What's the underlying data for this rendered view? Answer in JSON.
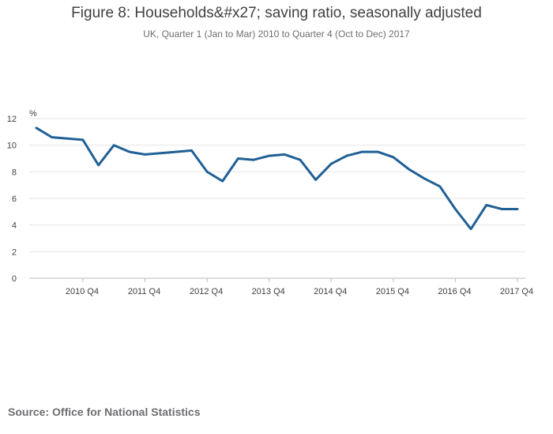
{
  "chart_data": {
    "type": "line",
    "title": "Figure 8: Households&#x27; saving ratio, seasonally adjusted",
    "subtitle": "UK, Quarter 1 (Jan to Mar) 2010 to Quarter 4 (Oct to Dec) 2017",
    "ylabel": "%",
    "xlabel": "",
    "ylim": [
      0,
      12
    ],
    "yticks": [
      0,
      2,
      4,
      6,
      8,
      10,
      12
    ],
    "grid": true,
    "x_labels": [
      "2010 Q4",
      "2011 Q4",
      "2012 Q4",
      "2013 Q4",
      "2014 Q4",
      "2015 Q4",
      "2016 Q4",
      "2017 Q4"
    ],
    "x_label_indices": [
      3,
      7,
      11,
      15,
      19,
      23,
      27,
      31
    ],
    "series": [
      {
        "name": "Households' saving ratio",
        "color": "#206095",
        "values": [
          11.3,
          10.6,
          10.5,
          10.4,
          8.5,
          10.0,
          9.5,
          9.3,
          9.4,
          9.5,
          9.6,
          8.0,
          7.3,
          9.0,
          8.9,
          9.2,
          9.3,
          8.9,
          7.4,
          8.6,
          9.2,
          9.5,
          9.5,
          9.1,
          8.2,
          7.5,
          6.9,
          5.2,
          3.7,
          5.5,
          5.2,
          5.2
        ]
      }
    ]
  },
  "source": "Source: Office for National Statistics"
}
